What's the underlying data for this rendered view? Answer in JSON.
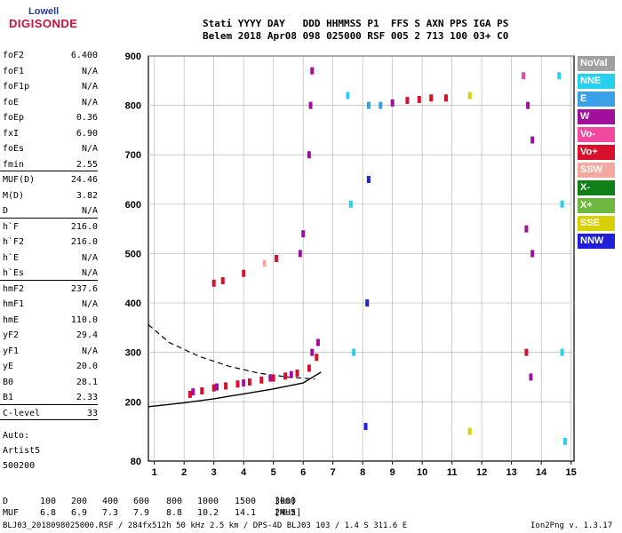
{
  "logo": {
    "top": "Lowell",
    "main": "DIGISONDE"
  },
  "header": {
    "line1": "Stati YYYY DAY   DDD HHMMSS P1  FFS S AXN PPS IGA PS",
    "line2": "Belem 2018 Apr08 098 025000 RSF 005 2 713 100 03+ C0"
  },
  "params": [
    {
      "k": "foF2",
      "v": "6.400"
    },
    {
      "k": "foF1",
      "v": "N/A"
    },
    {
      "k": "foF1p",
      "v": "N/A"
    },
    {
      "k": "foE",
      "v": "N/A"
    },
    {
      "k": "foEp",
      "v": "0.36"
    },
    {
      "k": "fxI",
      "v": "6.90"
    },
    {
      "k": "foEs",
      "v": "N/A"
    },
    {
      "k": "fmin",
      "v": "2.55"
    },
    {
      "k": "MUF(D)",
      "v": "24.46"
    },
    {
      "k": "M(D)",
      "v": "3.82"
    },
    {
      "k": "D",
      "v": "N/A"
    },
    {
      "k": "h`F",
      "v": "216.0"
    },
    {
      "k": "h`F2",
      "v": "216.0"
    },
    {
      "k": "h`E",
      "v": "N/A"
    },
    {
      "k": "h`Es",
      "v": "N/A"
    },
    {
      "k": "hmF2",
      "v": "237.6"
    },
    {
      "k": "hmF1",
      "v": "N/A"
    },
    {
      "k": "hmE",
      "v": "110.0"
    },
    {
      "k": "yF2",
      "v": "29.4"
    },
    {
      "k": "yF1",
      "v": "N/A"
    },
    {
      "k": "yE",
      "v": "20.0"
    },
    {
      "k": "B0",
      "v": "28.1"
    },
    {
      "k": "B1",
      "v": "2.33"
    },
    {
      "k": "C-level",
      "v": "33"
    }
  ],
  "auto": {
    "l1": "Auto:",
    "l2": "Artist5",
    "l3": "500200"
  },
  "footer": {
    "d_label": "D",
    "d_values": [
      "100",
      "200",
      "400",
      "600",
      "800",
      "1000",
      "1500",
      "3000"
    ],
    "d_unit": "[km]",
    "muf_label": "MUF",
    "muf_values": [
      "6.8",
      "6.9",
      "7.3",
      "7.9",
      "8.8",
      "10.2",
      "14.1",
      "24.5"
    ],
    "muf_unit": "[MHz]",
    "status": "BLJ03_2018098025000.RSF / 284fx512h 50 kHz 2.5 km / DPS-4D BLJ03 103 / 1.4 S 311.6 E",
    "version": "Ion2Png v. 1.3.17"
  },
  "legend": [
    {
      "label": "NoVal",
      "color": "#a0a0a0"
    },
    {
      "label": "NNE",
      "color": "#27d0f0"
    },
    {
      "label": "E",
      "color": "#3aa0e8"
    },
    {
      "label": "W",
      "color": "#a0109c"
    },
    {
      "label": "Vo-",
      "color": "#f04aa0"
    },
    {
      "label": "Vo+",
      "color": "#d8102c"
    },
    {
      "label": "SSW",
      "color": "#f5a8a0"
    },
    {
      "label": "X-",
      "color": "#108018"
    },
    {
      "label": "X+",
      "color": "#70b840"
    },
    {
      "label": "SSE",
      "color": "#d8d000"
    },
    {
      "label": "NNW",
      "color": "#2020d8"
    }
  ],
  "chart_data": {
    "type": "scatter",
    "xlabel": "",
    "ylabel": "",
    "xlim": [
      0.8,
      15.1
    ],
    "ylim": [
      80,
      900
    ],
    "x_ticks": [
      1,
      2,
      3,
      4,
      5,
      6,
      7,
      8,
      9,
      10,
      11,
      12,
      13,
      14,
      15
    ],
    "y_ticks": [
      80,
      200,
      300,
      400,
      500,
      600,
      700,
      800,
      900
    ],
    "grid": true,
    "points": [
      {
        "x": 2.2,
        "y": 215,
        "c": "Vo+"
      },
      {
        "x": 2.6,
        "y": 222,
        "c": "Vo+"
      },
      {
        "x": 3.0,
        "y": 228,
        "c": "Vo+"
      },
      {
        "x": 3.4,
        "y": 232,
        "c": "Vo+"
      },
      {
        "x": 3.8,
        "y": 236,
        "c": "Vo+"
      },
      {
        "x": 4.2,
        "y": 240,
        "c": "Vo+"
      },
      {
        "x": 4.6,
        "y": 244,
        "c": "Vo+"
      },
      {
        "x": 5.0,
        "y": 248,
        "c": "Vo+"
      },
      {
        "x": 5.4,
        "y": 252,
        "c": "Vo+"
      },
      {
        "x": 5.8,
        "y": 258,
        "c": "Vo+"
      },
      {
        "x": 6.2,
        "y": 268,
        "c": "Vo+"
      },
      {
        "x": 6.45,
        "y": 290,
        "c": "Vo+"
      },
      {
        "x": 2.3,
        "y": 220,
        "c": "W"
      },
      {
        "x": 3.1,
        "y": 230,
        "c": "W"
      },
      {
        "x": 4.0,
        "y": 238,
        "c": "W"
      },
      {
        "x": 4.9,
        "y": 248,
        "c": "W"
      },
      {
        "x": 5.6,
        "y": 255,
        "c": "W"
      },
      {
        "x": 6.3,
        "y": 300,
        "c": "W"
      },
      {
        "x": 6.5,
        "y": 320,
        "c": "W"
      },
      {
        "x": 3.0,
        "y": 440,
        "c": "Vo+"
      },
      {
        "x": 3.3,
        "y": 445,
        "c": "Vo+"
      },
      {
        "x": 4.0,
        "y": 460,
        "c": "Vo+"
      },
      {
        "x": 4.7,
        "y": 480,
        "c": "SSW"
      },
      {
        "x": 5.1,
        "y": 490,
        "c": "Vo+"
      },
      {
        "x": 5.9,
        "y": 500,
        "c": "W"
      },
      {
        "x": 6.0,
        "y": 540,
        "c": "W"
      },
      {
        "x": 6.2,
        "y": 700,
        "c": "W"
      },
      {
        "x": 6.25,
        "y": 800,
        "c": "W"
      },
      {
        "x": 6.3,
        "y": 870,
        "c": "W"
      },
      {
        "x": 8.2,
        "y": 800,
        "c": "E"
      },
      {
        "x": 8.6,
        "y": 800,
        "c": "E"
      },
      {
        "x": 9.0,
        "y": 805,
        "c": "W"
      },
      {
        "x": 9.5,
        "y": 810,
        "c": "Vo+"
      },
      {
        "x": 9.9,
        "y": 812,
        "c": "Vo+"
      },
      {
        "x": 10.3,
        "y": 815,
        "c": "Vo+"
      },
      {
        "x": 10.8,
        "y": 815,
        "c": "Vo+"
      },
      {
        "x": 13.4,
        "y": 860,
        "c": "Vo-"
      },
      {
        "x": 13.55,
        "y": 800,
        "c": "W"
      },
      {
        "x": 13.7,
        "y": 730,
        "c": "W"
      },
      {
        "x": 13.5,
        "y": 550,
        "c": "W"
      },
      {
        "x": 13.7,
        "y": 500,
        "c": "W"
      },
      {
        "x": 13.5,
        "y": 300,
        "c": "Vo+"
      },
      {
        "x": 13.65,
        "y": 250,
        "c": "W"
      },
      {
        "x": 7.5,
        "y": 820,
        "c": "NNE"
      },
      {
        "x": 7.6,
        "y": 600,
        "c": "NNE"
      },
      {
        "x": 7.7,
        "y": 300,
        "c": "NNE"
      },
      {
        "x": 8.1,
        "y": 150,
        "c": "NNW"
      },
      {
        "x": 8.15,
        "y": 400,
        "c": "NNW"
      },
      {
        "x": 8.2,
        "y": 650,
        "c": "NNW"
      },
      {
        "x": 11.6,
        "y": 820,
        "c": "SSE"
      },
      {
        "x": 11.6,
        "y": 140,
        "c": "SSE"
      },
      {
        "x": 14.6,
        "y": 860,
        "c": "NNE"
      },
      {
        "x": 14.7,
        "y": 600,
        "c": "NNE"
      },
      {
        "x": 14.7,
        "y": 300,
        "c": "NNE"
      },
      {
        "x": 14.8,
        "y": 120,
        "c": "NNE"
      }
    ],
    "curve_solid": [
      [
        0.8,
        190
      ],
      [
        2,
        198
      ],
      [
        3,
        206
      ],
      [
        4,
        216
      ],
      [
        5,
        226
      ],
      [
        6,
        238
      ],
      [
        6.6,
        260
      ]
    ],
    "curve_dashed": [
      [
        0.8,
        356
      ],
      [
        1.5,
        320
      ],
      [
        2.5,
        292
      ],
      [
        3.5,
        272
      ],
      [
        4.5,
        258
      ],
      [
        5.5,
        250
      ],
      [
        6.4,
        246
      ]
    ]
  }
}
